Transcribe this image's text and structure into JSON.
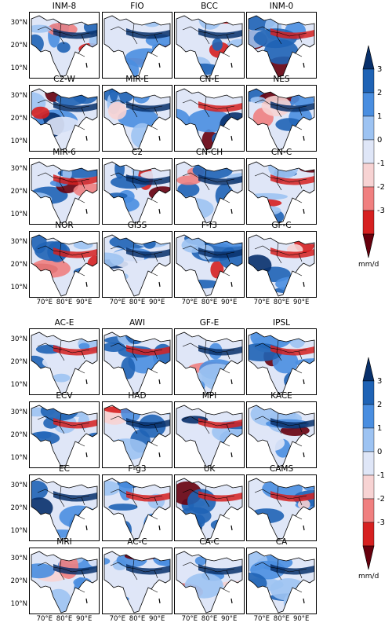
{
  "figure": {
    "upper_models": [
      "INM-8",
      "FIO",
      "BCC",
      "INM-0",
      "C2-W",
      "MIR-E",
      "CN-E",
      "NES",
      "MIR-6",
      "C2",
      "CN-CH",
      "CN-C",
      "NOR",
      "GISS",
      "F-f3",
      "GF-C"
    ],
    "lower_models": [
      "AC-E",
      "AWI",
      "GF-E",
      "IPSL",
      "ECV",
      "HAD",
      "MPI",
      "KACE",
      "EC",
      "F-g3",
      "UK",
      "CAMS",
      "MRI",
      "AC-C",
      "CA-C",
      "CA"
    ],
    "lat_ticks": [
      "30°N",
      "20°N",
      "10°N"
    ],
    "lon_ticks": [
      "70°E",
      "80°E",
      "90°E"
    ],
    "colorbar": {
      "ticks": [
        "3",
        "2",
        "1",
        "0",
        "-1",
        "-2",
        "-3"
      ],
      "unit": "mm/d",
      "colors": [
        "#08306b",
        "#1f63b5",
        "#4a8ee0",
        "#9dc3f2",
        "#dfe6f7",
        "#f7d3d3",
        "#f08080",
        "#d62020",
        "#67000d"
      ]
    }
  },
  "chart_data": {
    "type": "heatmap",
    "title": "",
    "panels_upper": [
      "INM-8",
      "FIO",
      "BCC",
      "INM-0",
      "C2-W",
      "MIR-E",
      "CN-E",
      "NES",
      "MIR-6",
      "C2",
      "CN-CH",
      "CN-C",
      "NOR",
      "GISS",
      "F-f3",
      "GF-C"
    ],
    "panels_lower": [
      "AC-E",
      "AWI",
      "GF-E",
      "IPSL",
      "ECV",
      "HAD",
      "MPI",
      "KACE",
      "EC",
      "F-g3",
      "UK",
      "CAMS",
      "MRI",
      "AC-C",
      "CA-C",
      "CA"
    ],
    "colorbar_levels": [
      3,
      2,
      1,
      0,
      -1,
      -2,
      -3
    ],
    "colorbar_extend": "both",
    "unit": "mm/d",
    "x_ticks": [
      "70°E",
      "80°E",
      "90°E"
    ],
    "y_ticks": [
      "30°N",
      "20°N",
      "10°N"
    ]
  }
}
